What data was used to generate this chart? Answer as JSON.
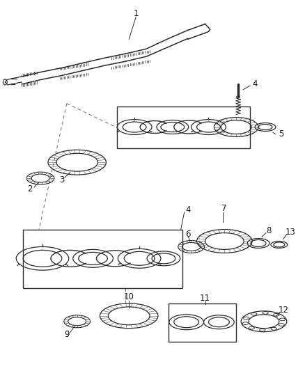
{
  "bg_color": "#ffffff",
  "lc": "#2a2a2a",
  "fig_width": 4.38,
  "fig_height": 5.33,
  "dpi": 100
}
